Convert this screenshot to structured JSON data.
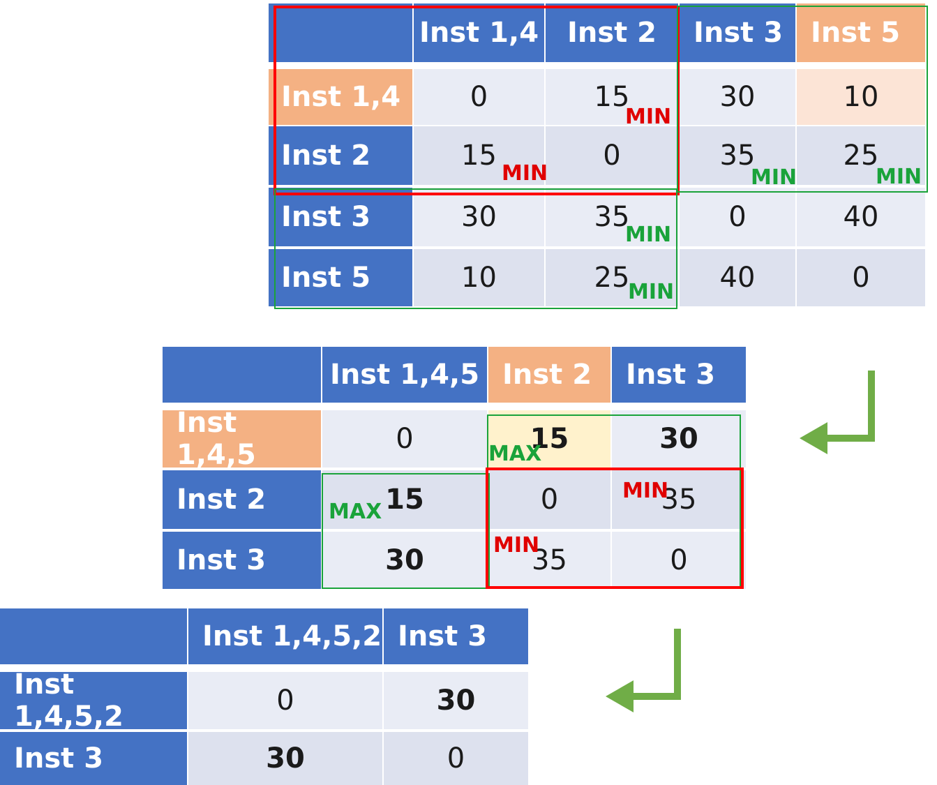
{
  "table1": {
    "col_headers": [
      "Inst 1,4",
      "Inst 2",
      "Inst 3",
      "Inst 5"
    ],
    "row_headers": [
      "Inst 1,4",
      "Inst 2",
      "Inst 3",
      "Inst 5"
    ],
    "rows": [
      [
        "0",
        "15",
        "30",
        "10"
      ],
      [
        "15",
        "0",
        "35",
        "25"
      ],
      [
        "30",
        "35",
        "0",
        "40"
      ],
      [
        "10",
        "25",
        "40",
        "0"
      ]
    ]
  },
  "table2": {
    "col_headers": [
      "Inst 1,4,5",
      "Inst 2",
      "Inst 3"
    ],
    "row_headers": [
      "Inst 1,4,5",
      "Inst 2",
      "Inst 3"
    ],
    "rows": [
      [
        "0",
        "15",
        "30"
      ],
      [
        "15",
        "0",
        "35"
      ],
      [
        "30",
        "35",
        "0"
      ]
    ]
  },
  "table3": {
    "col_headers": [
      "Inst 1,4,5,2",
      "Inst 3"
    ],
    "row_headers": [
      "Inst 1,4,5,2",
      "Inst 3"
    ],
    "rows": [
      [
        "0",
        "30"
      ],
      [
        "30",
        "0"
      ]
    ]
  },
  "annotations": {
    "min": "MIN",
    "max": "MAX"
  },
  "colors": {
    "header_blue": "#4472c4",
    "header_orange": "#f4b183",
    "highlight_red": "#ff0000",
    "highlight_green": "#1aa33a",
    "arrow_green": "#70ad47"
  }
}
